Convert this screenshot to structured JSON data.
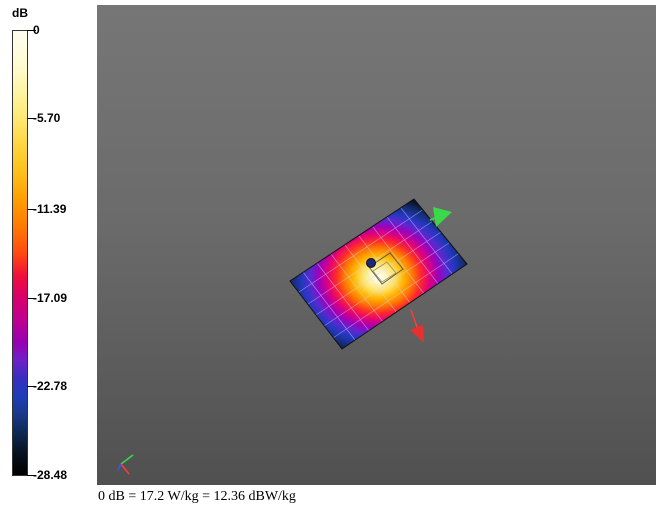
{
  "colorbar": {
    "unit": "dB",
    "ticks": [
      {
        "label": "0",
        "value": 0
      },
      {
        "label": "-5.70",
        "value": -5.7
      },
      {
        "label": "-11.39",
        "value": -11.39
      },
      {
        "label": "-17.09",
        "value": -17.09
      },
      {
        "label": "-22.78",
        "value": -22.78
      },
      {
        "label": "-28.48",
        "value": -28.48
      }
    ]
  },
  "footer": {
    "reference_text": "0 dB = 17.2 W/kg = 12.36 dBW/kg"
  },
  "colors": {
    "axis_x": "#ff3b3b",
    "axis_y": "#39d94a",
    "axis_z": "#3a56ff",
    "probe": "#1e2a6e"
  }
}
